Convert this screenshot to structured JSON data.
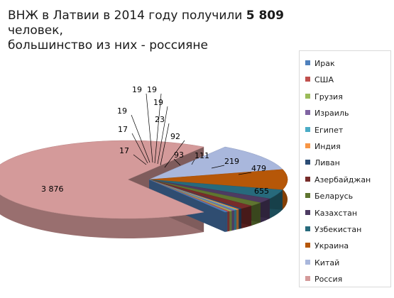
{
  "title": {
    "part1": "ВНЖ в Латвии в 2014 году получили ",
    "number": "5 809",
    "part2": " человек,",
    "line2": "большинство из них - россияне"
  },
  "chart_data": {
    "type": "pie",
    "title": "ВНЖ в Латвии в 2014 году получили 5 809 человек, большинство из них - россияне",
    "legend_position": "right",
    "slices": [
      {
        "label": "Ирак",
        "value": 17,
        "color": "#4f81bd"
      },
      {
        "label": "США",
        "value": 17,
        "color": "#c0504d"
      },
      {
        "label": "Грузия",
        "value": 19,
        "color": "#9bbb59"
      },
      {
        "label": "Израиль",
        "value": 19,
        "color": "#8064a2"
      },
      {
        "label": "Египет",
        "value": 19,
        "color": "#4bacc6"
      },
      {
        "label": "Индия",
        "value": 19,
        "color": "#f79646"
      },
      {
        "label": "Ливан",
        "value": 23,
        "color": "#2c4d75"
      },
      {
        "label": "Азербайджан",
        "value": 92,
        "color": "#772c2a"
      },
      {
        "label": "Беларусь",
        "value": 93,
        "color": "#5f7530"
      },
      {
        "label": "Казахстан",
        "value": 111,
        "color": "#4d3b62"
      },
      {
        "label": "Узбекистан",
        "value": 219,
        "color": "#276a7c"
      },
      {
        "label": "Украина",
        "value": 479,
        "color": "#b65708"
      },
      {
        "label": "Китай",
        "value": 655,
        "color": "#a9b7dc"
      },
      {
        "label": "Россия",
        "value": 3876,
        "color": "#d49a9a"
      }
    ],
    "data_labels": [
      "17",
      "17",
      "19",
      "19",
      "19",
      "19",
      "23",
      "92",
      "93",
      "111",
      "219",
      "479",
      "655",
      "3 876"
    ]
  }
}
